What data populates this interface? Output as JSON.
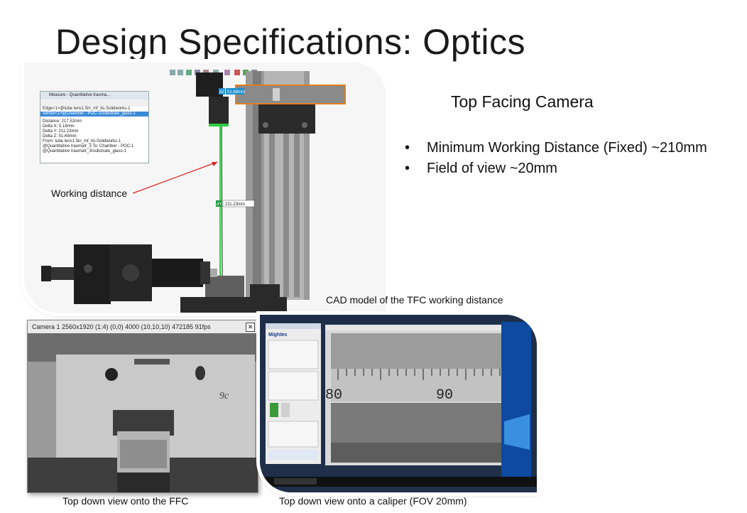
{
  "slide": {
    "title": "Design Specifications: Optics",
    "heading": "Top Facing Camera",
    "bullets": [
      {
        "marker": "•",
        "text": "Minimum Working Distance (Fixed) ~210mm"
      },
      {
        "marker": "•",
        "text": "Field of view ~20mm"
      }
    ]
  },
  "cad": {
    "caption": "CAD model of the TFC working distance",
    "annotation": "Working distance",
    "measure_title": "Measure - Quantitative trauma...",
    "measure_items": [
      "Edge<1>@tube lens1.5in_mf_its-Solidworks-1",
      "Vertex<1>@Chamber - POC-1/substrate_glass-1"
    ],
    "measure_results": [
      "Distance: 217.52mm",
      "Delta X: 5.18mm",
      "Delta Y: 211.23mm",
      "Delta Z: 51.69mm",
      "From: tube lens1.5in_mf_its-Solidworks-1",
      "@Quantitative traumaIr_3 To: Chamber - POC-1",
      "@Quantitative traumaIr_3/substrate_glass-1"
    ],
    "dim_top": "51.69mm",
    "dim_top_tag": "dZ",
    "dim_mid": "211.23mm",
    "dim_mid_tag": "dY"
  },
  "camera_view": {
    "caption": "Top down view onto the FFC",
    "window_title": "Camera 1    2560x1920 (1:4) (0,0) 4000 (10,10,10) 472185 91fps",
    "close_glyph": "✕"
  },
  "caliper_view": {
    "caption": "Top down view onto a caliper (FOV 20mm)",
    "scale_labels": [
      "80",
      "90"
    ],
    "app_name": "Mightex"
  }
}
